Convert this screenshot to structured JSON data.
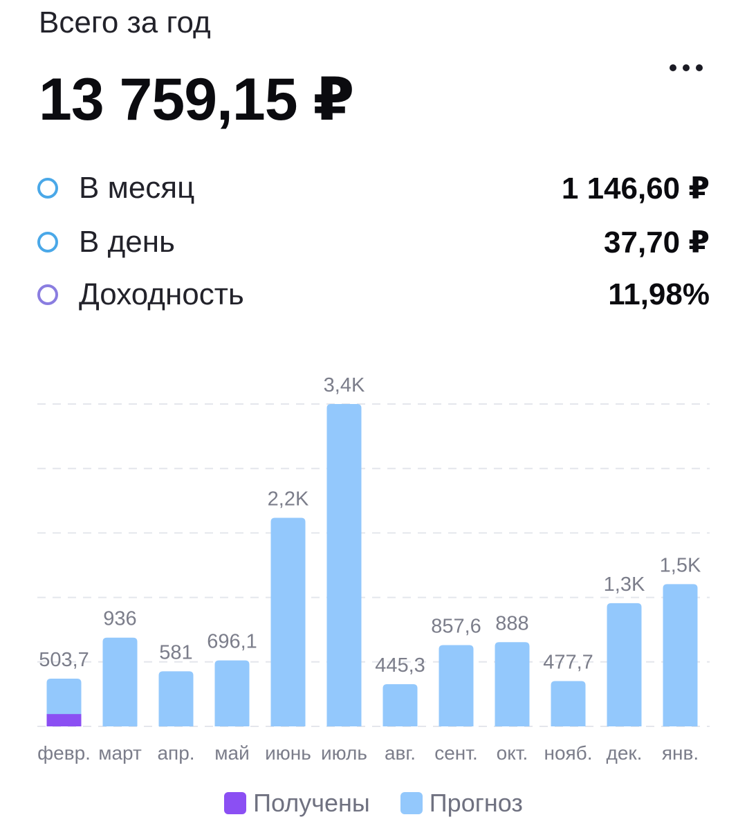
{
  "header": {
    "label": "Всего за год",
    "total": "13 759,15 ₽"
  },
  "stats": [
    {
      "label": "В месяц",
      "value": "1 146,60 ₽",
      "color": "#4aa8e8"
    },
    {
      "label": "В день",
      "value": "37,70 ₽",
      "color": "#4aa8e8"
    },
    {
      "label": "Доходность",
      "value": "11,98%",
      "color": "#8a7de0"
    }
  ],
  "chart_data": {
    "type": "bar",
    "stacked": true,
    "categories": [
      "февр.",
      "март",
      "апр.",
      "май",
      "июнь",
      "июль",
      "авг.",
      "сент.",
      "окт.",
      "нояб.",
      "дек.",
      "янв."
    ],
    "value_labels": [
      "503,7",
      "936",
      "581",
      "696,1",
      "2,2K",
      "3,4K",
      "445,3",
      "857,6",
      "888",
      "477,7",
      "1,3K",
      "1,5K"
    ],
    "series": [
      {
        "name": "Получены",
        "color": "#8b4ff3",
        "values": [
          130,
          0,
          0,
          0,
          0,
          0,
          0,
          0,
          0,
          0,
          0,
          0
        ]
      },
      {
        "name": "Прогноз",
        "color": "#93c8fc",
        "values": [
          373.7,
          936,
          581,
          696.1,
          2200,
          3400,
          445.3,
          857.6,
          888,
          477.7,
          1300,
          1500
        ]
      }
    ],
    "ylim": [
      0,
      3400
    ],
    "grid": true,
    "legend": "bottom-center"
  }
}
